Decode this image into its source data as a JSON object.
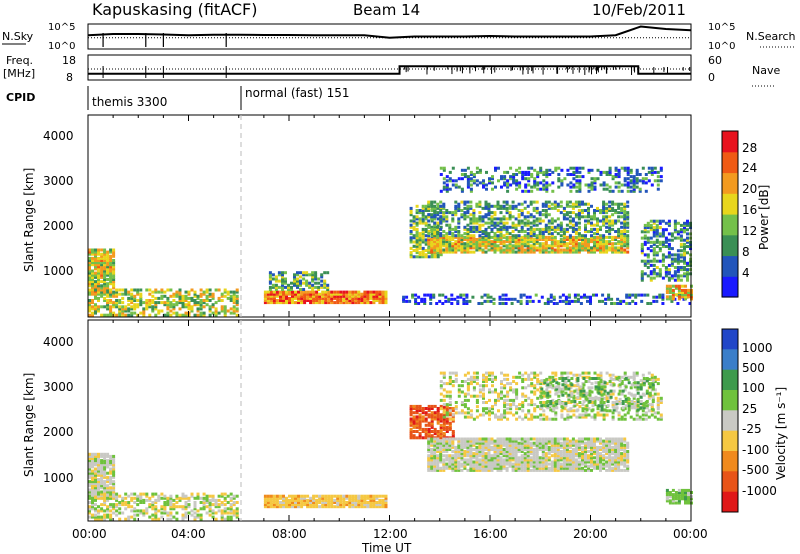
{
  "header": {
    "station": "Kapuskasing (fitACF)",
    "beam": "Beam 14",
    "date": "10/Feb/2011"
  },
  "strips": {
    "nsky_label": "N.Sky",
    "noise_ticks": [
      "10^5",
      "10^0"
    ],
    "nsearch_label": "N.Search",
    "freq_label_1": "Freq.",
    "freq_label_2": "[MHz]",
    "freq_ticks": [
      "18",
      "8"
    ],
    "nave_label": "Nave",
    "nave_ticks": [
      "60",
      "0"
    ],
    "cpid_label": "CPID",
    "cpid_segments": [
      {
        "start_hour": 0,
        "name": "themis 3300"
      },
      {
        "start_hour": 6,
        "name": "normal (fast) 151"
      }
    ]
  },
  "xaxis": {
    "ticks": [
      "00:00",
      "04:00",
      "08:00",
      "12:00",
      "16:00",
      "20:00",
      "00:00"
    ],
    "label": "Time UT"
  },
  "power_panel": {
    "ylabel": "Slant Range [km]",
    "yticks": [
      "1000",
      "2000",
      "3000",
      "4000"
    ],
    "colorbar_label": "Power [dB]",
    "colorbar_ticks": [
      "4",
      "8",
      "12",
      "16",
      "20",
      "24",
      "28"
    ],
    "colors": [
      "#1a1aff",
      "#2255bb",
      "#3a8f55",
      "#74c04a",
      "#e8d61c",
      "#f39a1f",
      "#f05a14",
      "#e8121e"
    ]
  },
  "velocity_panel": {
    "ylabel": "Slant Range [km]",
    "yticks": [
      "1000",
      "2000",
      "3000",
      "4000"
    ],
    "colorbar_label": "Velocity [m s⁻¹]",
    "colorbar_ticks": [
      "1000",
      "500",
      "100",
      "25",
      "-25",
      "-100",
      "-500",
      "-1000"
    ],
    "colors": [
      "#2046c8",
      "#3a7ec9",
      "#3e9a4d",
      "#6fc23c",
      "#c9c9c4",
      "#f5c842",
      "#f08a1d",
      "#e85418",
      "#e01818"
    ]
  },
  "chart_data": {
    "type": "heatmap",
    "x_range_hours": [
      0,
      24
    ],
    "y_range_km": [
      180,
      4500
    ],
    "noise_series": {
      "name": "N.Sky",
      "hours": [
        0,
        1,
        2,
        3,
        4,
        5,
        6,
        7,
        8,
        9,
        10,
        11,
        12,
        13,
        14,
        15,
        16,
        17,
        18,
        19,
        20,
        21,
        22,
        23,
        24
      ],
      "level": [
        0.55,
        0.6,
        0.6,
        0.58,
        0.55,
        0.57,
        0.57,
        0.56,
        0.56,
        0.55,
        0.55,
        0.55,
        0.45,
        0.5,
        0.5,
        0.5,
        0.52,
        0.5,
        0.5,
        0.5,
        0.5,
        0.55,
        0.9,
        0.8,
        0.75
      ]
    },
    "frequency_mhz": {
      "hours": [
        0,
        12.4,
        12.4,
        21.9,
        21.9,
        24
      ],
      "values": [
        10.5,
        10.5,
        13.5,
        13.5,
        10.5,
        10.5
      ]
    },
    "power_regions": [
      {
        "t0": 0.0,
        "t1": 1.0,
        "r0": 700,
        "r1": 1650,
        "level": 0.55,
        "density": 0.9
      },
      {
        "t0": 0.0,
        "t1": 6.0,
        "r0": 250,
        "r1": 800,
        "level": 0.5,
        "density": 0.55
      },
      {
        "t0": 7.0,
        "t1": 11.8,
        "r0": 520,
        "r1": 780,
        "level": 0.75,
        "density": 0.95
      },
      {
        "t0": 7.2,
        "t1": 9.5,
        "r0": 800,
        "r1": 1200,
        "level": 0.35,
        "density": 0.6
      },
      {
        "t0": 12.8,
        "t1": 14.0,
        "r0": 1500,
        "r1": 2600,
        "level": 0.4,
        "density": 0.7
      },
      {
        "t0": 13.5,
        "t1": 21.5,
        "r0": 1600,
        "r1": 1950,
        "level": 0.55,
        "density": 0.9
      },
      {
        "t0": 13.5,
        "t1": 21.5,
        "r0": 1950,
        "r1": 2700,
        "level": 0.35,
        "density": 0.55
      },
      {
        "t0": 14.0,
        "t1": 22.8,
        "r0": 2900,
        "r1": 3400,
        "level": 0.25,
        "density": 0.35
      },
      {
        "t0": 12.5,
        "t1": 24.0,
        "r0": 500,
        "r1": 700,
        "level": 0.2,
        "density": 0.4
      },
      {
        "t0": 22.0,
        "t1": 24.0,
        "r0": 1000,
        "r1": 2300,
        "level": 0.3,
        "density": 0.55
      },
      {
        "t0": 23.0,
        "t1": 24.0,
        "r0": 600,
        "r1": 900,
        "level": 0.6,
        "density": 0.8
      }
    ],
    "velocity_regions": [
      {
        "t0": 0.0,
        "t1": 1.0,
        "r0": 700,
        "r1": 1650,
        "level": 4,
        "density": 0.9
      },
      {
        "t0": 0.0,
        "t1": 6.0,
        "r0": 250,
        "r1": 800,
        "level": 4,
        "density": 0.55
      },
      {
        "t0": 7.0,
        "t1": 11.8,
        "r0": 520,
        "r1": 780,
        "level": 5,
        "density": 0.95
      },
      {
        "t0": 12.8,
        "t1": 14.5,
        "r0": 2000,
        "r1": 2700,
        "level": 7,
        "density": 0.75
      },
      {
        "t0": 13.5,
        "t1": 21.5,
        "r0": 1300,
        "r1": 2000,
        "level": 4,
        "density": 0.9
      },
      {
        "t0": 14.0,
        "t1": 22.8,
        "r0": 2400,
        "r1": 3400,
        "level": 4,
        "density": 0.4
      },
      {
        "t0": 18.0,
        "t1": 22.5,
        "r0": 2600,
        "r1": 3300,
        "level": 3,
        "density": 0.35
      },
      {
        "t0": 23.0,
        "t1": 24.0,
        "r0": 600,
        "r1": 900,
        "level": 3,
        "density": 0.8
      }
    ]
  }
}
